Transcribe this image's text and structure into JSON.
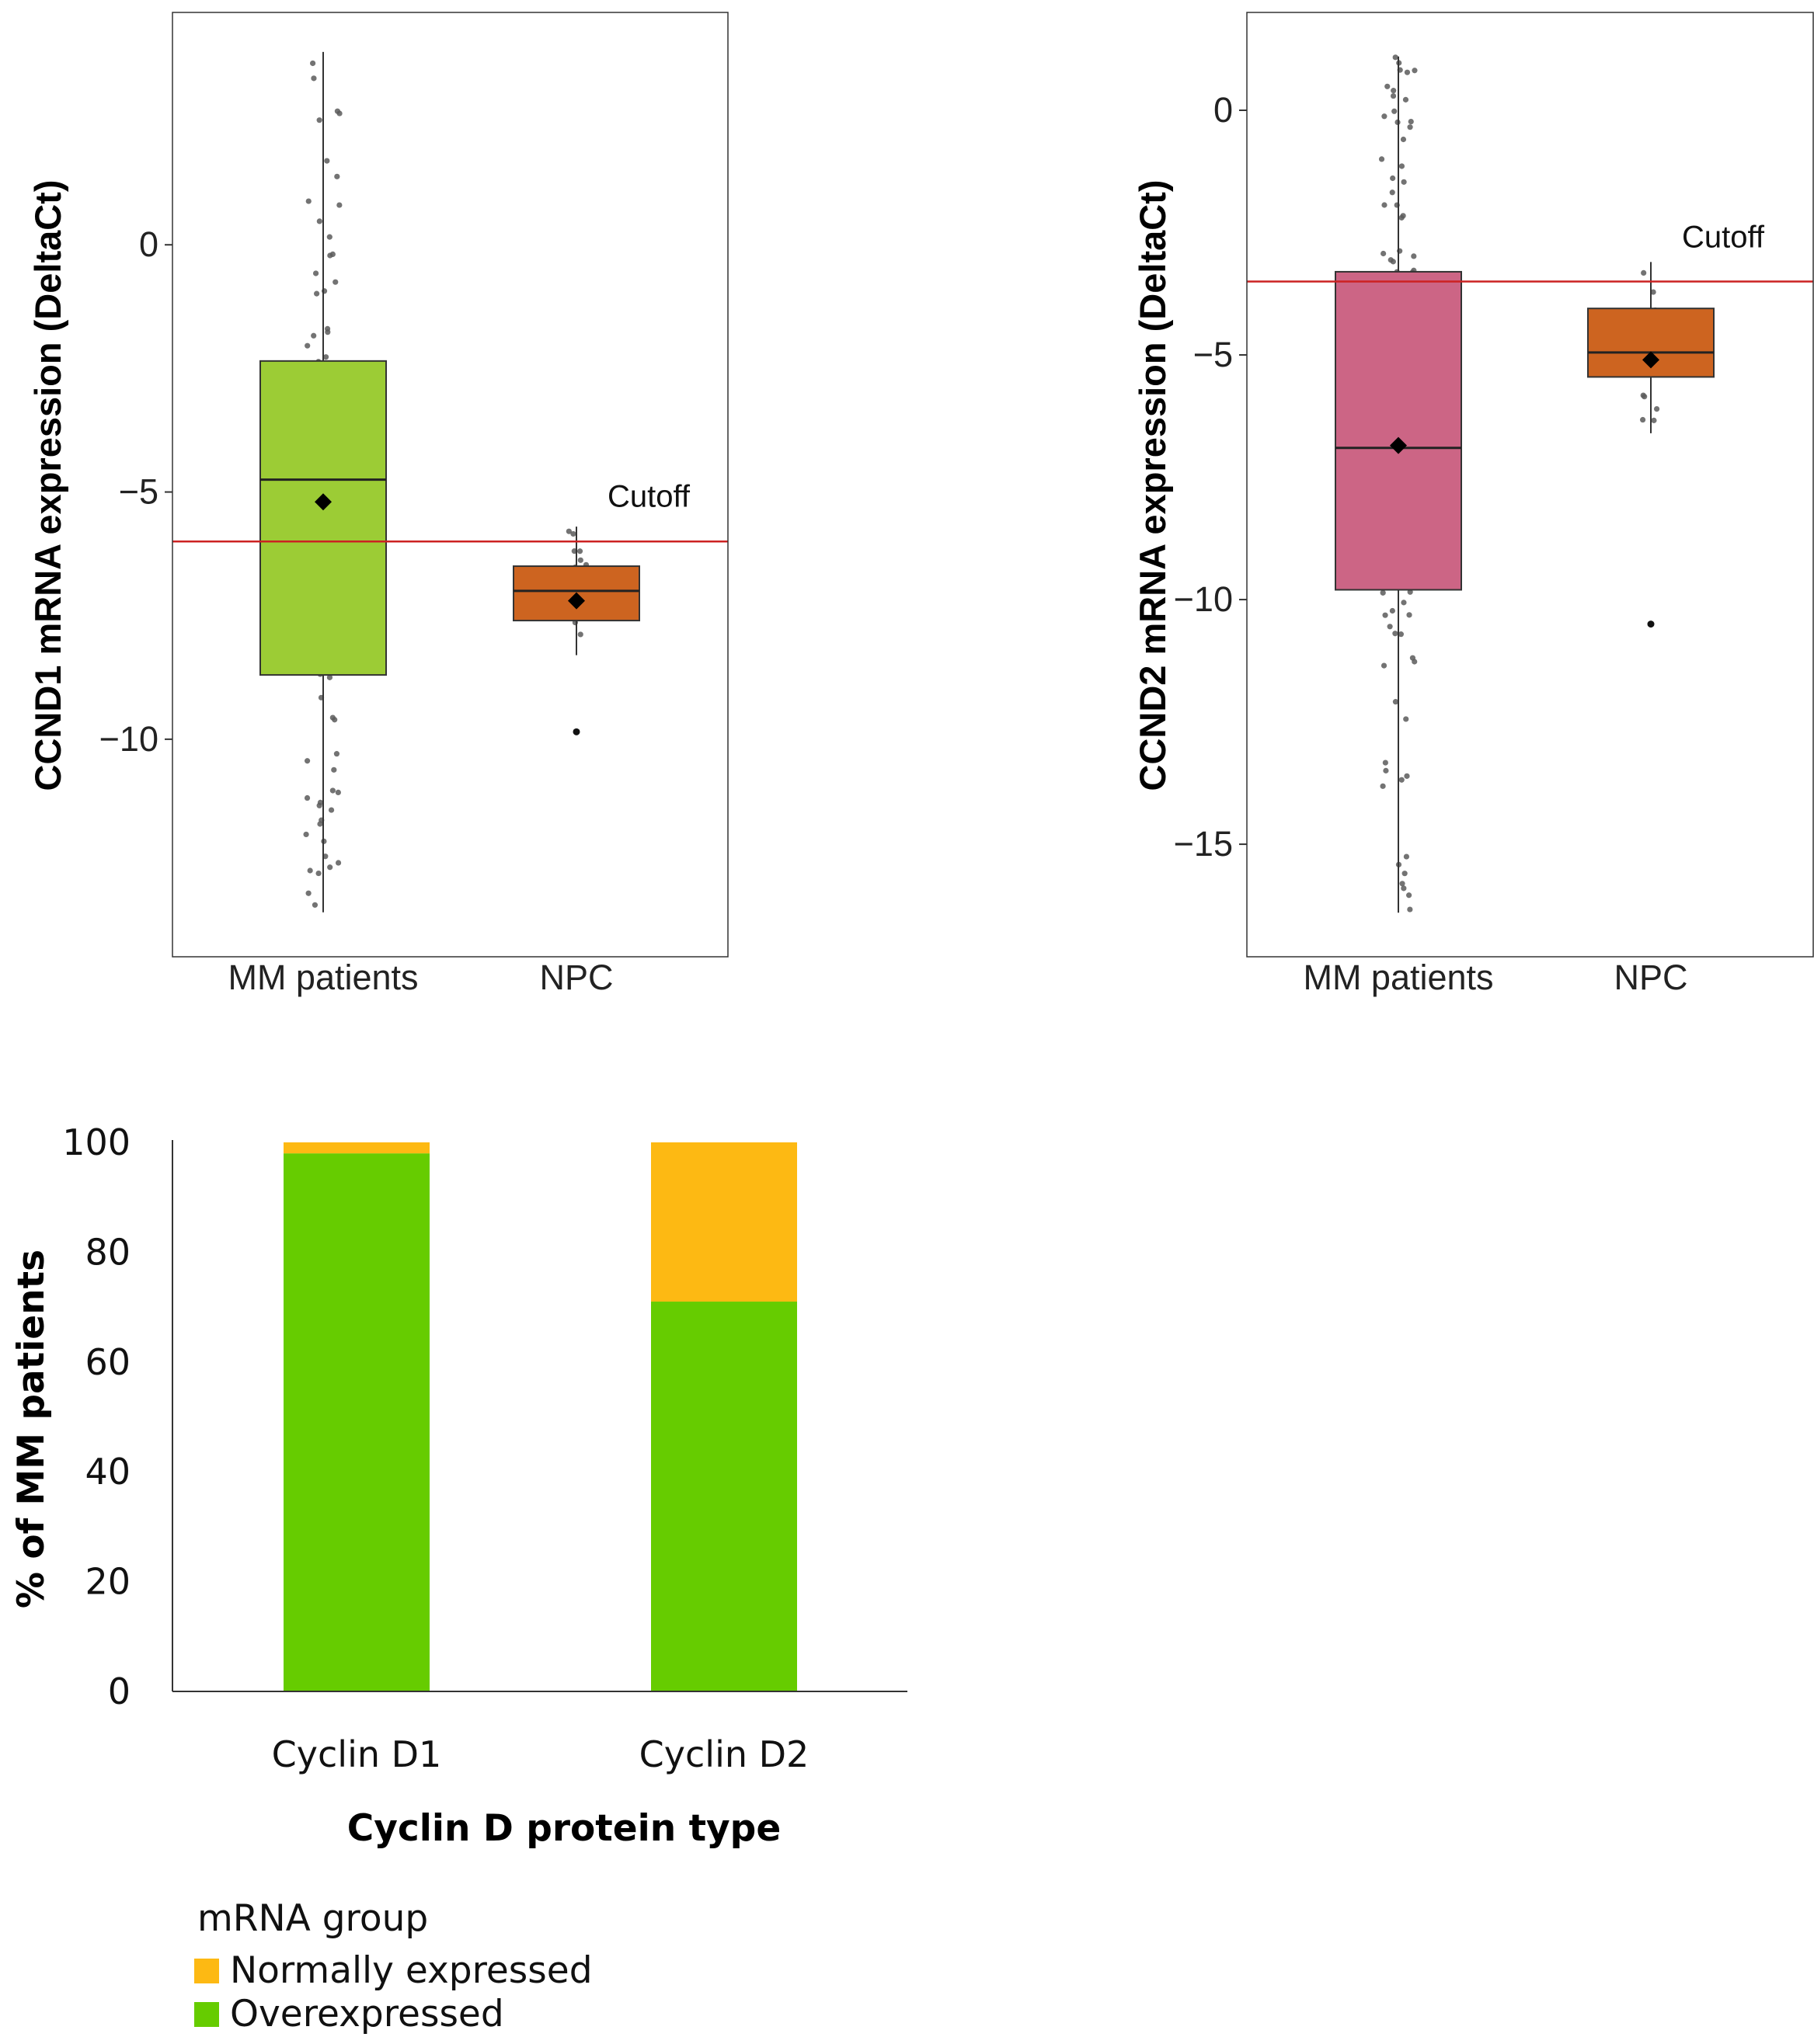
{
  "chart_data": [
    {
      "type": "boxplot",
      "ylabel": "CCND1 mRNA expression (DeltaCt)",
      "categories": [
        "MM patients",
        "NPC"
      ],
      "yticks": [
        0,
        -5,
        -10
      ],
      "ytick_labels": [
        "0",
        "−5",
        "−10"
      ],
      "ylim": [
        -14.4,
        4.7
      ],
      "cutoff": {
        "value": -6.0,
        "label": "Cutoff",
        "color": "#cc2222"
      },
      "boxes": [
        {
          "category": "MM patients",
          "q1": -8.7,
          "median": -4.75,
          "q3": -2.35,
          "whisker_low": -13.5,
          "whisker_high": 3.9,
          "mean": -5.2,
          "fill": "#9ccc35",
          "outliers": []
        },
        {
          "category": "NPC",
          "q1": -7.6,
          "median": -7.0,
          "q3": -6.5,
          "whisker_low": -8.3,
          "whisker_high": -5.7,
          "mean": -7.2,
          "fill": "#cd6420",
          "outliers": [
            -9.85
          ]
        }
      ]
    },
    {
      "type": "boxplot",
      "ylabel": "CCND2 mRNA expression (DeltaCt)",
      "categories": [
        "MM patients",
        "NPC"
      ],
      "yticks": [
        0,
        -5,
        -10,
        -15
      ],
      "ytick_labels": [
        "0",
        "−5",
        "−10",
        "−15"
      ],
      "ylim": [
        -17.3,
        2.0
      ],
      "cutoff": {
        "value": -3.5,
        "label": "Cutoff",
        "color": "#cc2222"
      },
      "boxes": [
        {
          "category": "MM patients",
          "q1": -9.8,
          "median": -6.9,
          "q3": -3.3,
          "whisker_low": -16.4,
          "whisker_high": 1.1,
          "mean": -6.85,
          "fill": "#cc6585",
          "outliers": []
        },
        {
          "category": "NPC",
          "q1": -5.45,
          "median": -4.95,
          "q3": -4.05,
          "whisker_low": -6.6,
          "whisker_high": -3.1,
          "mean": -5.1,
          "fill": "#cd6420",
          "outliers": [
            -10.5
          ]
        }
      ]
    },
    {
      "type": "stacked_bar",
      "xlabel": "Cyclin D protein type",
      "ylabel": "% of MM patients",
      "categories": [
        "Cyclin D1",
        "Cyclin D2"
      ],
      "ylim": [
        0,
        100
      ],
      "yticks": [
        0,
        20,
        40,
        60,
        80,
        100
      ],
      "series": [
        {
          "name": "Overexpressed",
          "color": "#66cc00",
          "values": [
            98,
            71
          ]
        },
        {
          "name": "Normally expressed",
          "color": "#fdb913",
          "values": [
            2,
            29
          ]
        }
      ],
      "legend_title": "mRNA group",
      "legend": [
        {
          "name": "Normally expressed",
          "color": "#fdb913"
        },
        {
          "name": "Overexpressed",
          "color": "#66cc00"
        }
      ]
    }
  ]
}
